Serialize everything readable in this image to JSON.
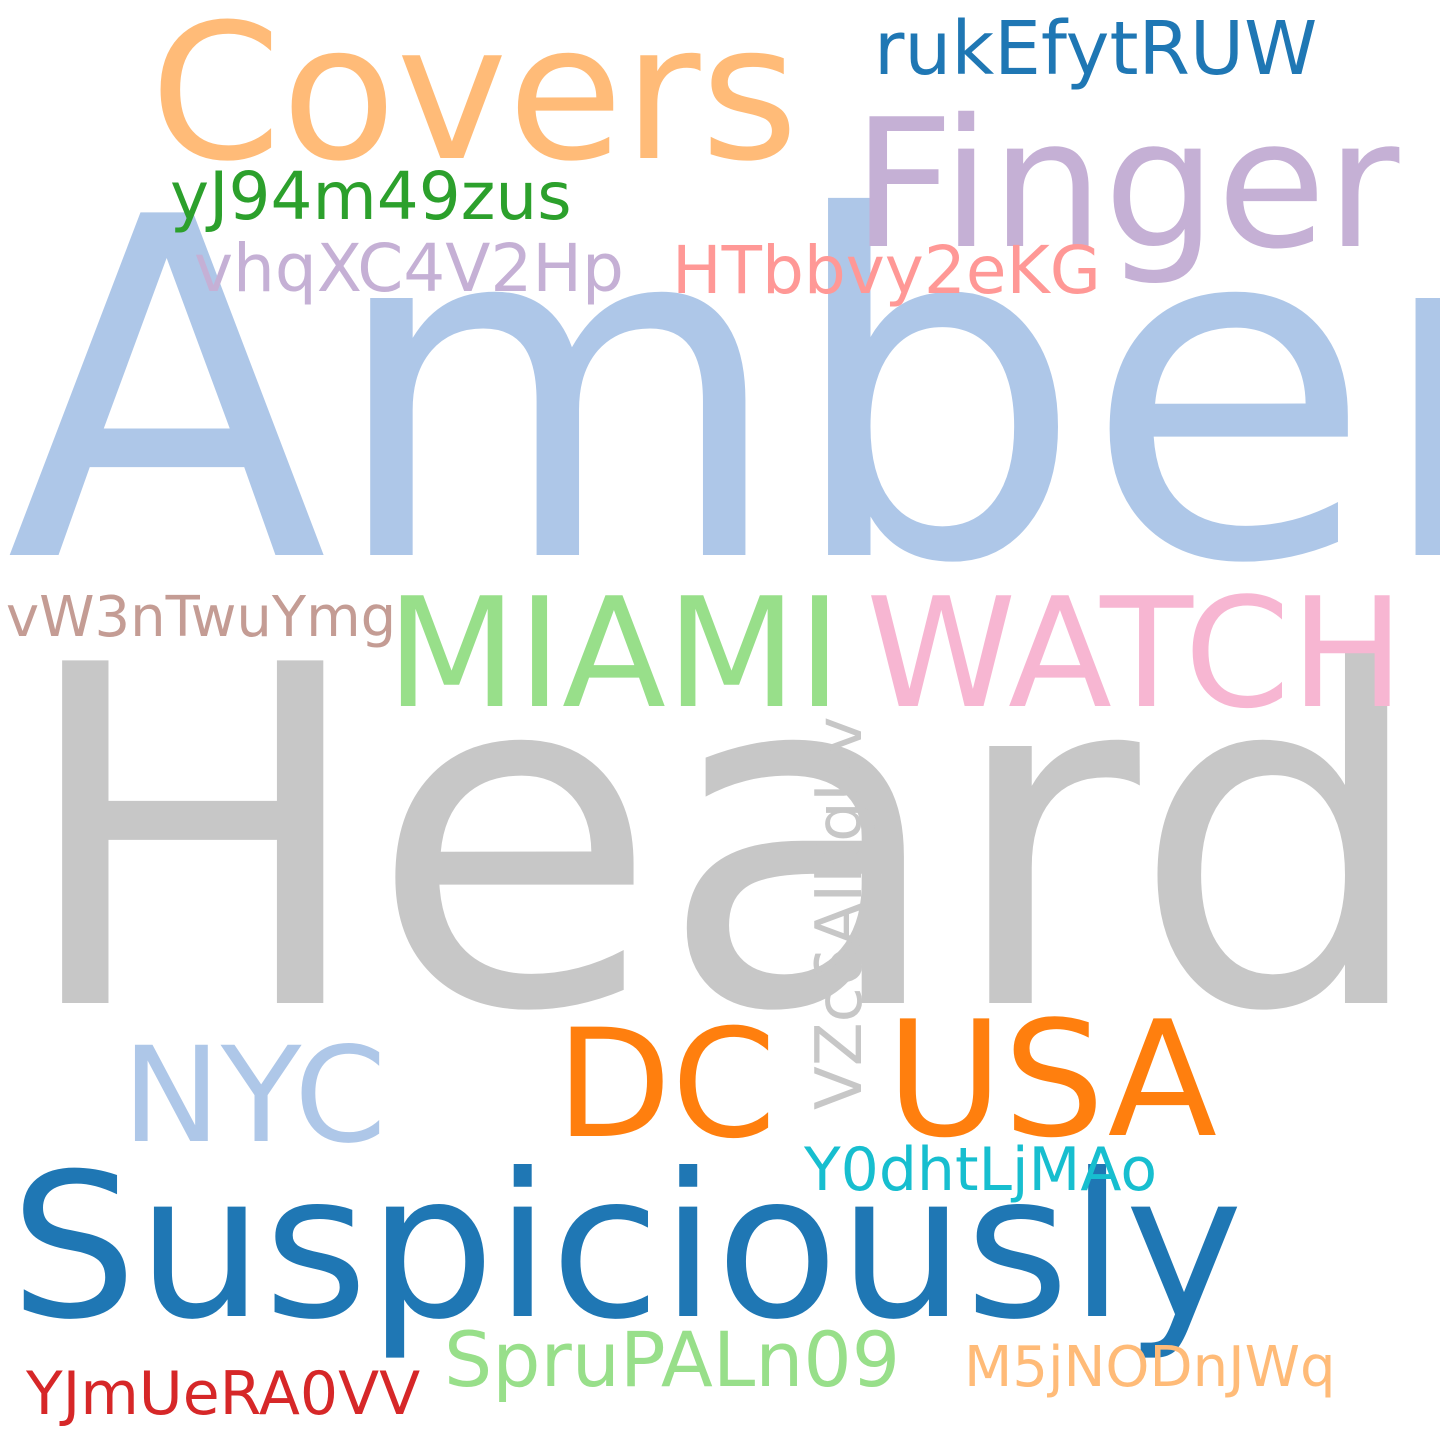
{
  "words": [
    {
      "text": "Heard",
      "color": "#c7c7c7"
    },
    {
      "text": "Amber",
      "color": "#aec7e8"
    },
    {
      "text": "Suspiciously",
      "color": "#1f77b4"
    },
    {
      "text": "Covers",
      "color": "#ffbb78"
    },
    {
      "text": "Finger",
      "color": "#c5b0d5"
    },
    {
      "text": "MIAMI",
      "color": "#98df8a"
    },
    {
      "text": "WATCH",
      "color": "#f7b6d2"
    },
    {
      "text": "USA",
      "color": "#ff7f0e"
    },
    {
      "text": "DC",
      "color": "#ff7f0e"
    },
    {
      "text": "NYC",
      "color": "#aec7e8"
    },
    {
      "text": "rukEfytRUW",
      "color": "#1f77b4"
    },
    {
      "text": "yJ94m49zus",
      "color": "#2ca02c"
    },
    {
      "text": "vhqXC4V2Hp",
      "color": "#c5b0d5"
    },
    {
      "text": "HTbbvy2eKG",
      "color": "#ff9896"
    },
    {
      "text": "vW3nTwuYmg",
      "color": "#c49c94"
    },
    {
      "text": "VZc6AIKgUv",
      "color": "#c7c7c7"
    },
    {
      "text": "Y0dhtLjMAo",
      "color": "#17becf"
    },
    {
      "text": "SpruPALn09",
      "color": "#98df8a"
    },
    {
      "text": "M5jNODnJWq",
      "color": "#ffbb78"
    },
    {
      "text": "YJmUeRA0VV",
      "color": "#d62728"
    }
  ]
}
